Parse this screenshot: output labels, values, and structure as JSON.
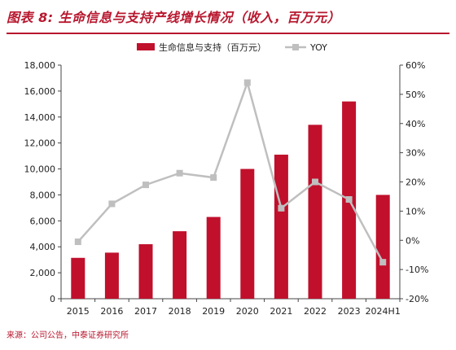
{
  "title": "图表 8: 生命信息与支持产线增长情况（收入，百万元）",
  "source": "来源：公司公告，中泰证券研究所",
  "colors": {
    "accent": "#b8172e",
    "bar": "#c0102c",
    "line": "#bfbfbf",
    "axis": "#444444"
  },
  "chart_data": {
    "type": "bar",
    "categories": [
      "2015",
      "2016",
      "2017",
      "2018",
      "2019",
      "2020",
      "2021",
      "2022",
      "2023",
      "2024H1"
    ],
    "series": [
      {
        "name": "生命信息与支持（百万元）",
        "type": "bar",
        "axis": "left",
        "values": [
          3150,
          3550,
          4200,
          5200,
          6300,
          10000,
          11100,
          13400,
          15200,
          8000
        ]
      },
      {
        "name": "YOY",
        "type": "line",
        "axis": "right",
        "values": [
          -0.5,
          12.5,
          19,
          23,
          21.5,
          54,
          11,
          20,
          14,
          -7.5
        ]
      }
    ],
    "y_left": {
      "min": 0,
      "max": 18000,
      "step": 2000,
      "tick_labels": [
        "0",
        "2,000",
        "4,000",
        "6,000",
        "8,000",
        "10,000",
        "12,000",
        "14,000",
        "16,000",
        "18,000"
      ]
    },
    "y_right": {
      "min": -20,
      "max": 60,
      "step": 10,
      "tick_labels": [
        "-20%",
        "-10%",
        "0%",
        "10%",
        "20%",
        "30%",
        "40%",
        "50%",
        "60%"
      ]
    },
    "legend": [
      "生命信息与支持（百万元）",
      "YOY"
    ],
    "legend_position": "top-center",
    "grid": false
  }
}
